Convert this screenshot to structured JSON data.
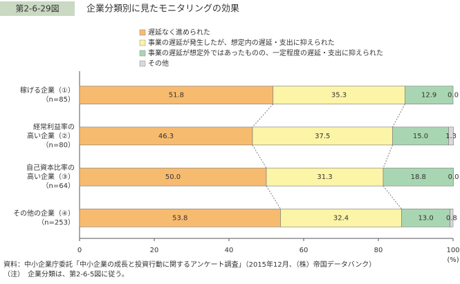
{
  "badge": "第2-6-29図",
  "chart_data": {
    "type": "stacked-barh",
    "title": "企業分類別に見たモニタリングの効果",
    "categories": [
      [
        "稼げる企業（①）",
        "（n=85）"
      ],
      [
        "経常利益率の",
        "高い企業（②）",
        "（n=80）"
      ],
      [
        "自己資本比率の",
        "高い企業（③）",
        "（n=64）"
      ],
      [
        "その他の企業（④）",
        "（n=253）"
      ]
    ],
    "series": [
      {
        "name": "遅延なく進められた",
        "color": "#f7bb6f",
        "values": [
          51.8,
          46.3,
          50.0,
          53.8
        ],
        "value_labels": [
          "51.8",
          "46.3",
          "50.0",
          "53.8"
        ]
      },
      {
        "name": "事業の遅延が発生したが、想定内の遅延・支出に抑えられた",
        "color": "#fcf4a6",
        "values": [
          35.3,
          37.5,
          31.3,
          32.4
        ],
        "value_labels": [
          "35.3",
          "37.5",
          "31.3",
          "32.4"
        ]
      },
      {
        "name": "事業の遅延が想定外ではあったものの、一定程度の遅延・支出に抑えられた",
        "color": "#a9d6b2",
        "values": [
          12.9,
          15.0,
          18.8,
          13.0
        ],
        "value_labels": [
          "12.9",
          "15.0",
          "18.8",
          "13.0"
        ]
      },
      {
        "name": "その他",
        "color": "#d9d9d9",
        "values": [
          0.0,
          1.3,
          0.0,
          0.8
        ],
        "value_labels": [
          "0.0",
          "1.3",
          "0.0",
          "0.8"
        ]
      }
    ],
    "xlim": [
      0,
      100
    ],
    "xticks": [
      0,
      20,
      40,
      60,
      80,
      100
    ],
    "xlabel": "(%)"
  },
  "notes": [
    "資料：中小企業庁委託「中小企業の成長と投資行動に関するアンケート調査」（2015年12月、（株）帝国データバンク）",
    "（注）　企業分類は、第2-6-5図に従う。"
  ]
}
